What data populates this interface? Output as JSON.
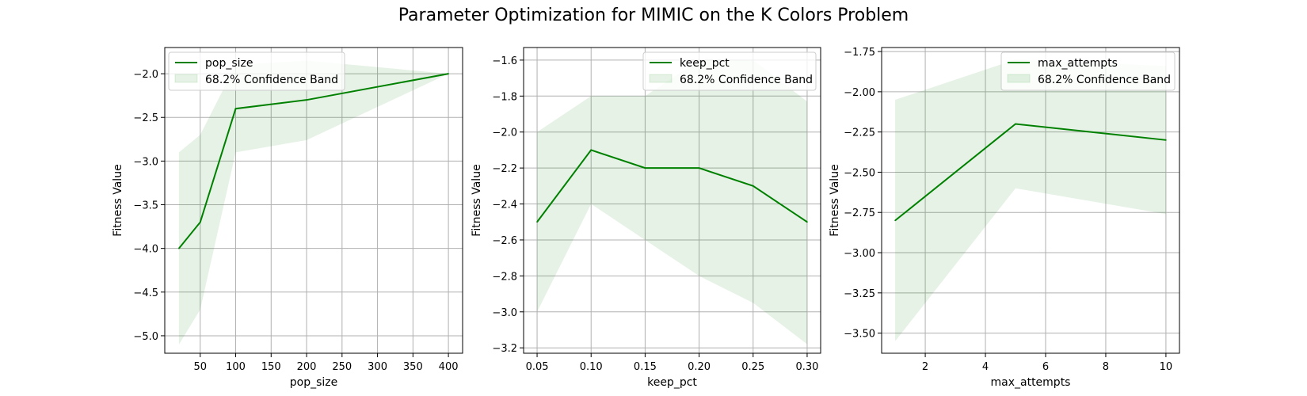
{
  "figure": {
    "title": "Parameter Optimization for MIMIC on the K Colors Problem"
  },
  "colors": {
    "line": "#008000",
    "band_fill": "#008000",
    "grid": "#b0b0b0",
    "axes": "#000000",
    "legend_border": "#cccccc"
  },
  "chart_data": [
    {
      "type": "line",
      "xlabel": "pop_size",
      "ylabel": "Fitness Value",
      "x": [
        20,
        50,
        100,
        200,
        400
      ],
      "series": [
        {
          "name": "pop_size",
          "values": [
            -4.0,
            -3.7,
            -2.4,
            -2.3,
            -2.0
          ]
        }
      ],
      "band": {
        "name": "68.2% Confidence Band",
        "lower": [
          -5.1,
          -4.7,
          -2.9,
          -2.76,
          -2.0
        ],
        "upper": [
          -2.9,
          -2.7,
          -1.9,
          -1.85,
          -2.0
        ]
      },
      "xlim": [
        0,
        420
      ],
      "ylim": [
        -5.2,
        -1.7
      ],
      "xticks": [
        50,
        100,
        150,
        200,
        250,
        300,
        350,
        400
      ],
      "xtick_labels": [
        "50",
        "100",
        "150",
        "200",
        "250",
        "300",
        "350",
        "400"
      ],
      "yticks": [
        -5.0,
        -4.5,
        -4.0,
        -3.5,
        -3.0,
        -2.5,
        -2.0
      ],
      "ytick_labels": [
        "−5.0",
        "−4.5",
        "−4.0",
        "−3.5",
        "−3.0",
        "−2.5",
        "−2.0"
      ],
      "grid": true,
      "legend": "upper left"
    },
    {
      "type": "line",
      "xlabel": "keep_pct",
      "ylabel": "Fitness Value",
      "x": [
        0.05,
        0.1,
        0.15,
        0.2,
        0.25,
        0.3
      ],
      "series": [
        {
          "name": "keep_pct",
          "values": [
            -2.5,
            -2.1,
            -2.2,
            -2.2,
            -2.3,
            -2.5
          ]
        }
      ],
      "band": {
        "name": "68.2% Confidence Band",
        "lower": [
          -3.0,
          -2.4,
          -2.6,
          -2.8,
          -2.95,
          -3.18
        ],
        "upper": [
          -2.0,
          -1.8,
          -1.8,
          -1.6,
          -1.6,
          -1.83
        ]
      },
      "xlim": [
        0.0375,
        0.3125
      ],
      "ylim": [
        -3.23,
        -1.53
      ],
      "xticks": [
        0.05,
        0.1,
        0.15,
        0.2,
        0.25,
        0.3
      ],
      "xtick_labels": [
        "0.05",
        "0.10",
        "0.15",
        "0.20",
        "0.25",
        "0.30"
      ],
      "yticks": [
        -3.2,
        -3.0,
        -2.8,
        -2.6,
        -2.4,
        -2.2,
        -2.0,
        -1.8,
        -1.6
      ],
      "ytick_labels": [
        "−3.2",
        "−3.0",
        "−2.8",
        "−2.6",
        "−2.4",
        "−2.2",
        "−2.0",
        "−1.8",
        "−1.6"
      ],
      "grid": true,
      "legend": "upper right"
    },
    {
      "type": "line",
      "xlabel": "max_attempts",
      "ylabel": "Fitness Value",
      "x": [
        1,
        5,
        10
      ],
      "series": [
        {
          "name": "max_attempts",
          "values": [
            -2.8,
            -2.2,
            -2.3
          ]
        }
      ],
      "band": {
        "name": "68.2% Confidence Band",
        "lower": [
          -3.55,
          -2.6,
          -2.76
        ],
        "upper": [
          -2.05,
          -1.8,
          -1.84
        ]
      },
      "xlim": [
        0.55,
        10.45
      ],
      "ylim": [
        -3.625,
        -1.725
      ],
      "xticks": [
        2,
        4,
        6,
        8,
        10
      ],
      "xtick_labels": [
        "2",
        "4",
        "6",
        "8",
        "10"
      ],
      "yticks": [
        -3.5,
        -3.25,
        -3.0,
        -2.75,
        -2.5,
        -2.25,
        -2.0,
        -1.75
      ],
      "ytick_labels": [
        "−3.50",
        "−3.25",
        "−3.00",
        "−2.75",
        "−2.50",
        "−2.25",
        "−2.00",
        "−1.75"
      ],
      "grid": true,
      "legend": "upper right"
    }
  ]
}
